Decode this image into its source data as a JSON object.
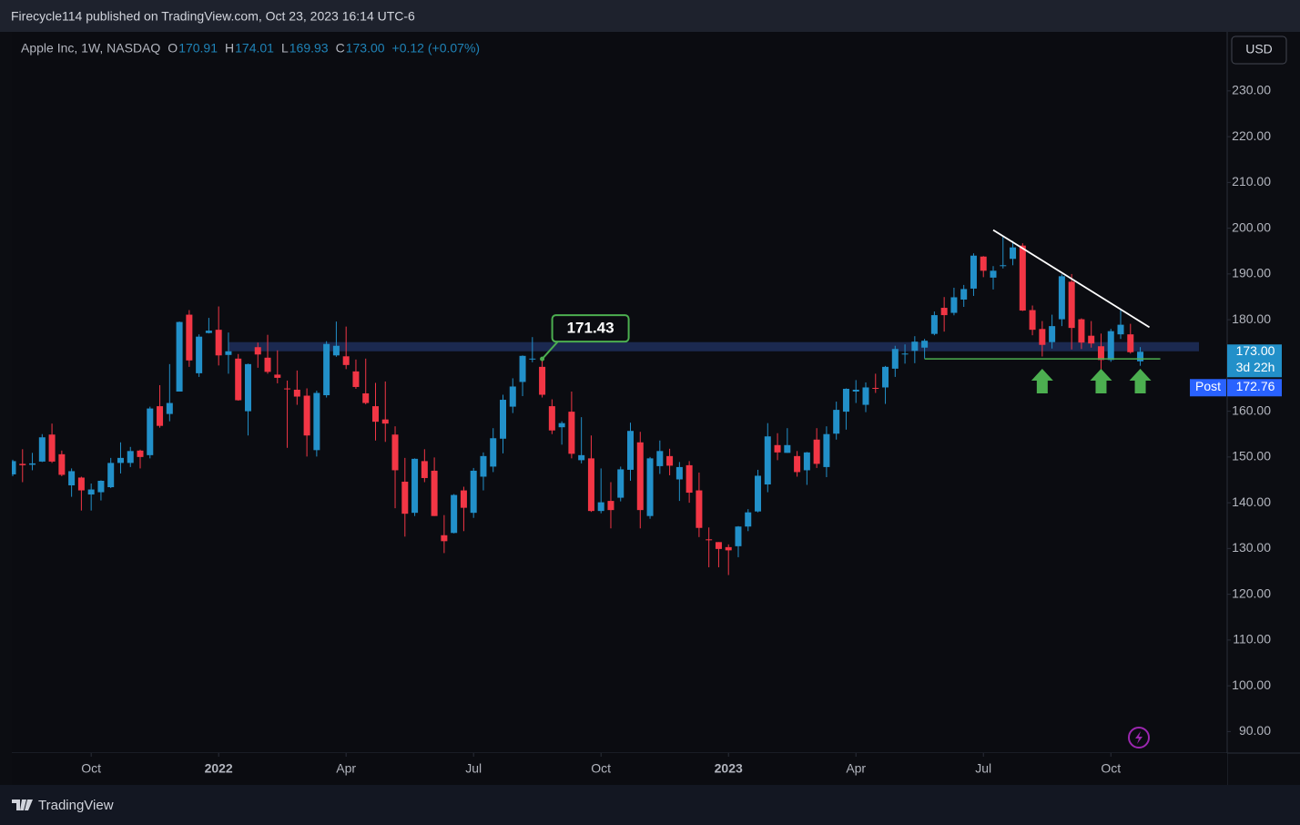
{
  "header": "Firecycle114 published on TradingView.com, Oct 23, 2023 16:14 UTC-6",
  "footer": "TradingView",
  "currency": "USD",
  "chart_data": {
    "type": "candlestick",
    "legend": {
      "title": "Apple Inc, 1W, NASDAQ",
      "o": "O",
      "h": "H",
      "l": "L",
      "c": "C",
      "close_label": "173.00",
      "change": "+0.12 (+0.07%)"
    },
    "countdown": "3d 22h",
    "post_market": {
      "label": "Post",
      "value": 172.76
    },
    "x": [
      "2021-08-09",
      "2021-08-16",
      "2021-08-23",
      "2021-08-30",
      "2021-09-07",
      "2021-09-13",
      "2021-09-20",
      "2021-09-27",
      "2021-10-04",
      "2021-10-11",
      "2021-10-18",
      "2021-10-25",
      "2021-11-01",
      "2021-11-08",
      "2021-11-15",
      "2021-11-22",
      "2021-11-29",
      "2021-12-06",
      "2021-12-13",
      "2021-12-20",
      "2021-12-27",
      "2022-01-03",
      "2022-01-10",
      "2022-01-18",
      "2022-01-24",
      "2022-01-31",
      "2022-02-07",
      "2022-02-14",
      "2022-02-22",
      "2022-02-28",
      "2022-03-07",
      "2022-03-14",
      "2022-03-21",
      "2022-03-28",
      "2022-04-04",
      "2022-04-11",
      "2022-04-18",
      "2022-04-25",
      "2022-05-02",
      "2022-05-09",
      "2022-05-16",
      "2022-05-23",
      "2022-05-31",
      "2022-06-06",
      "2022-06-13",
      "2022-06-21",
      "2022-06-27",
      "2022-07-05",
      "2022-07-11",
      "2022-07-18",
      "2022-07-25",
      "2022-08-01",
      "2022-08-08",
      "2022-08-15",
      "2022-08-22",
      "2022-08-29",
      "2022-09-06",
      "2022-09-12",
      "2022-09-19",
      "2022-09-26",
      "2022-10-03",
      "2022-10-10",
      "2022-10-17",
      "2022-10-24",
      "2022-10-31",
      "2022-11-07",
      "2022-11-14",
      "2022-11-21",
      "2022-11-28",
      "2022-12-05",
      "2022-12-12",
      "2022-12-19",
      "2022-12-27",
      "2023-01-03",
      "2023-01-09",
      "2023-01-17",
      "2023-01-23",
      "2023-01-30",
      "2023-02-06",
      "2023-02-13",
      "2023-02-21",
      "2023-02-27",
      "2023-03-06",
      "2023-03-13",
      "2023-03-20",
      "2023-03-27",
      "2023-04-03",
      "2023-04-10",
      "2023-04-17",
      "2023-04-24",
      "2023-05-01",
      "2023-05-08",
      "2023-05-15",
      "2023-05-22",
      "2023-05-30",
      "2023-06-05",
      "2023-06-12",
      "2023-06-20",
      "2023-06-26",
      "2023-07-03",
      "2023-07-10",
      "2023-07-17",
      "2023-07-24",
      "2023-07-31",
      "2023-08-07",
      "2023-08-14",
      "2023-08-21",
      "2023-08-28",
      "2023-09-05",
      "2023-09-11",
      "2023-09-18",
      "2023-09-25",
      "2023-10-02",
      "2023-10-09",
      "2023-10-16",
      "2023-10-23"
    ],
    "open": [
      146.2,
      148.5,
      148.3,
      149.0,
      154.9,
      150.6,
      143.8,
      145.5,
      141.8,
      142.3,
      143.4,
      148.7,
      148.7,
      151.4,
      150.4,
      161.1,
      159.4,
      164.3,
      181.1,
      168.3,
      177.1,
      177.8,
      172.3,
      171.5,
      160.0,
      174.0,
      171.7,
      168.0,
      164.98,
      164.7,
      163.4,
      151.5,
      163.5,
      172.2,
      172.0,
      168.7,
      163.9,
      161.1,
      158.2,
      154.9,
      144.6,
      137.8,
      149.1,
      147.0,
      132.9,
      133.4,
      142.7,
      137.8,
      145.7,
      147.9,
      154.0,
      161.0,
      166.4,
      171.3,
      169.7,
      161.1,
      156.5,
      159.9,
      149.3,
      149.7,
      138.2,
      140.4,
      141.1,
      147.2,
      153.2,
      137.1,
      148.0,
      150.2,
      145.1,
      148.2,
      142.7,
      132.0,
      131.4,
      130.3,
      130.5,
      134.8,
      138.1,
      144.0,
      152.6,
      150.9,
      150.2,
      147.1,
      153.8,
      147.8,
      155.1,
      159.9,
      164.3,
      161.4,
      165.1,
      165.2,
      169.3,
      172.5,
      173.2,
      173.9,
      176.9,
      182.6,
      181.5,
      184.4,
      186.8,
      193.8,
      189.2,
      191.9,
      193.3,
      196.2,
      182.1,
      177.97,
      175.1,
      180.1,
      188.3,
      180.1,
      176.5,
      174.2,
      171.2,
      176.8,
      176.8,
      170.91
    ],
    "high": [
      149.4,
      151.7,
      150.9,
      155.0,
      157.3,
      151.4,
      147.5,
      145.7,
      144.2,
      144.9,
      149.8,
      153.2,
      152.2,
      151.6,
      161.0,
      165.7,
      170.3,
      179.6,
      182.1,
      176.8,
      180.4,
      182.9,
      177.2,
      172.5,
      170.4,
      175.0,
      176.7,
      173.3,
      166.7,
      168.9,
      165.0,
      164.5,
      175.3,
      179.6,
      178.5,
      171.3,
      171.5,
      166.2,
      166.5,
      156.7,
      149.8,
      149.7,
      151.7,
      149.9,
      137.3,
      141.9,
      143.5,
      147.6,
      151.0,
      156.3,
      163.6,
      167.2,
      172.2,
      176.2,
      171.43,
      162.6,
      157.8,
      164.3,
      158.7,
      154.7,
      147.5,
      144.5,
      147.9,
      157.5,
      155.5,
      150.0,
      153.6,
      151.8,
      148.9,
      149.1,
      146.6,
      134.6,
      131.4,
      130.9,
      134.9,
      138.6,
      147.2,
      157.4,
      155.2,
      156.3,
      151.3,
      151.1,
      156.3,
      156.7,
      162.1,
      165.0,
      166.8,
      166.3,
      168.2,
      169.9,
      174.3,
      174.6,
      176.4,
      175.8,
      181.8,
      184.95,
      186.99,
      187.6,
      194.5,
      193.9,
      191.7,
      198.2,
      197.2,
      196.7,
      183.1,
      179.7,
      181.1,
      189.9,
      189.98,
      180.3,
      179.7,
      176.97,
      177.99,
      182.3,
      179.1,
      174.01
    ],
    "low": [
      145.8,
      144.5,
      147.1,
      148.9,
      148.7,
      145.8,
      141.3,
      138.3,
      138.3,
      140.5,
      143.2,
      146.4,
      147.8,
      147.5,
      149.7,
      156.4,
      157.8,
      164.3,
      169.7,
      167.5,
      177.0,
      170.0,
      168.2,
      162.3,
      154.7,
      169.5,
      168.2,
      166.1,
      152.0,
      161.4,
      150.1,
      150.1,
      163.0,
      171.9,
      169.2,
      164.9,
      161.5,
      153.6,
      153.3,
      138.8,
      132.6,
      137.1,
      144.5,
      137.1,
      129.0,
      133.3,
      133.8,
      136.7,
      142.7,
      146.7,
      150.8,
      159.6,
      163.3,
      170.7,
      163.0,
      155.0,
      152.7,
      149.7,
      148.6,
      138.0,
      137.7,
      134.4,
      140.3,
      144.8,
      134.4,
      136.5,
      146.3,
      146.0,
      140.4,
      140.0,
      132.5,
      125.9,
      125.9,
      124.2,
      128.1,
      133.8,
      137.9,
      142.3,
      149.3,
      150.9,
      145.7,
      143.9,
      147.6,
      145.6,
      153.8,
      155.98,
      161.8,
      159.8,
      164.0,
      161.6,
      167.5,
      170.4,
      170.5,
      171.5,
      176.6,
      177.4,
      180.96,
      182.8,
      185.2,
      189.3,
      186.6,
      191.2,
      191.9,
      181.9,
      176.6,
      171.96,
      173.7,
      178.6,
      173.5,
      173.6,
      173.9,
      167.6,
      170.8,
      175.8,
      172.6,
      169.93
    ],
    "close": [
      149.1,
      148.2,
      148.6,
      154.3,
      149.0,
      146.1,
      146.9,
      142.7,
      142.9,
      144.8,
      148.7,
      149.8,
      151.3,
      150.0,
      160.6,
      156.8,
      161.8,
      179.5,
      171.1,
      176.3,
      177.6,
      172.2,
      173.1,
      162.4,
      170.3,
      172.4,
      168.6,
      167.3,
      164.9,
      163.2,
      154.7,
      164.0,
      174.7,
      174.3,
      170.1,
      165.3,
      161.8,
      157.7,
      157.3,
      147.1,
      137.6,
      149.6,
      145.4,
      137.1,
      131.6,
      141.7,
      138.9,
      147.0,
      150.2,
      154.1,
      162.5,
      165.4,
      172.1,
      171.5,
      163.6,
      155.8,
      157.4,
      150.7,
      150.4,
      138.2,
      140.1,
      138.4,
      147.3,
      155.7,
      138.4,
      149.7,
      151.3,
      148.1,
      147.8,
      142.2,
      134.5,
      131.9,
      129.9,
      129.6,
      134.8,
      137.9,
      145.9,
      154.5,
      151.0,
      152.6,
      146.7,
      151.0,
      148.5,
      155.0,
      160.3,
      164.9,
      164.7,
      165.2,
      165.0,
      169.7,
      173.6,
      172.6,
      175.2,
      175.4,
      181.0,
      181.0,
      184.9,
      186.7,
      194.0,
      190.7,
      190.7,
      191.9,
      195.8,
      182.0,
      177.8,
      174.5,
      178.6,
      189.5,
      178.2,
      175.0,
      174.8,
      171.2,
      177.5,
      178.9,
      172.9,
      173.0
    ],
    "up_color": "#2290c9",
    "down_color": "#f23645",
    "ylim": [
      85.3,
      242.9
    ],
    "yticks": [
      {
        "value": 90,
        "label": "90.00"
      },
      {
        "value": 100,
        "label": "100.00"
      },
      {
        "value": 110,
        "label": "110.00"
      },
      {
        "value": 120,
        "label": "120.00"
      },
      {
        "value": 130,
        "label": "130.00"
      },
      {
        "value": 140,
        "label": "140.00"
      },
      {
        "value": 150,
        "label": "150.00"
      },
      {
        "value": 160,
        "label": "160.00"
      },
      {
        "value": 170,
        "label": "170.00"
      },
      {
        "value": 180,
        "label": "180.00"
      },
      {
        "value": 190,
        "label": "190.00"
      },
      {
        "value": 200,
        "label": "200.00"
      },
      {
        "value": 210,
        "label": "210.00"
      },
      {
        "value": 220,
        "label": "220.00"
      },
      {
        "value": 230,
        "label": "230.00"
      }
    ],
    "xticks": [
      {
        "value": "2021-10-04",
        "label": "Oct"
      },
      {
        "value": "2022-01-03",
        "label": "2022"
      },
      {
        "value": "2022-04-04",
        "label": "Apr"
      },
      {
        "value": "2022-07-05",
        "label": "Jul"
      },
      {
        "value": "2022-10-03",
        "label": "Oct"
      },
      {
        "value": "2023-01-03",
        "label": "2023"
      },
      {
        "value": "2023-04-03",
        "label": "Apr"
      },
      {
        "value": "2023-07-03",
        "label": "Jul"
      },
      {
        "value": "2023-10-02",
        "label": "Oct"
      }
    ],
    "grid": false,
    "zone": {
      "from": "2022-01-10",
      "low": 173.1,
      "high": 175.1,
      "color": "#1f2f5c"
    },
    "support": {
      "from": "2023-05-22",
      "value": 171.43,
      "color": "#4caf50"
    },
    "price_note": {
      "x": "2022-08-22",
      "value": 171.43,
      "color": "#4caf50"
    },
    "trend_line": {
      "from": {
        "x": "2023-07-10",
        "y": 199.6
      },
      "to": {
        "x": "2023-10-23",
        "y": 179.6
      },
      "color": "#ffffff"
    },
    "arrows": [
      "2023-08-14",
      "2023-09-25",
      "2023-10-23"
    ]
  }
}
